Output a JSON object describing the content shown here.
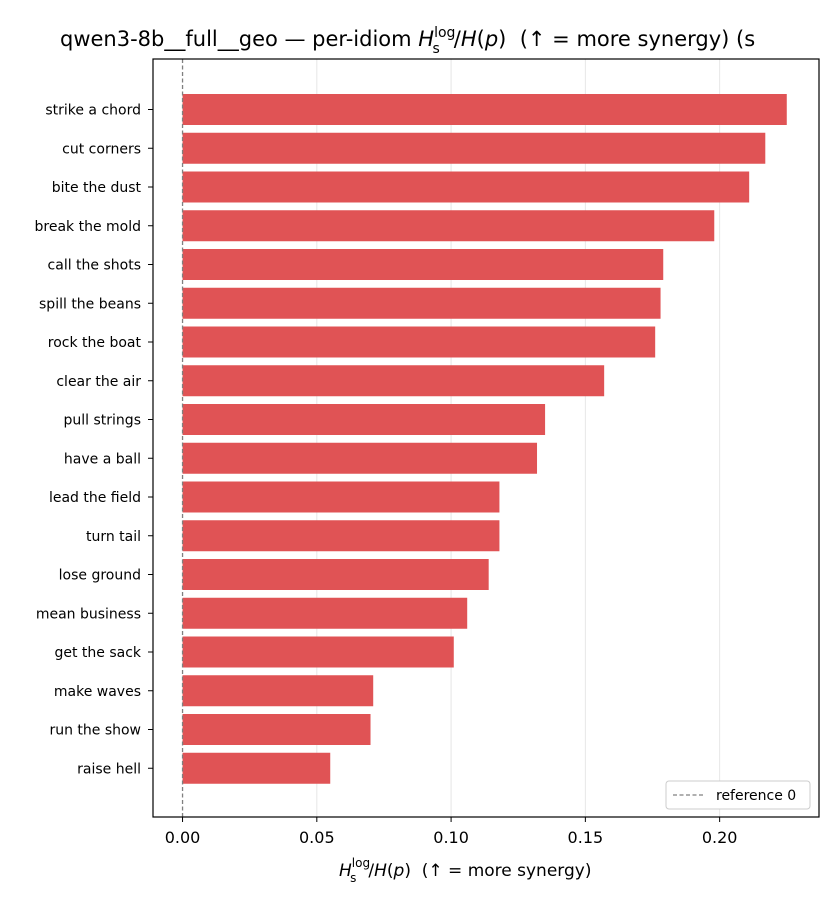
{
  "chart_data": {
    "type": "bar",
    "orientation": "horizontal",
    "title_prefix": "qwen3-8b__full__geo — per-idiom ",
    "title_suffix": "  (↑ = more synergy) (s",
    "xlabel_suffix": "  (↑ = more synergy)",
    "categories": [
      "strike a chord",
      "cut corners",
      "bite the dust",
      "break the mold",
      "call the shots",
      "spill the beans",
      "rock the boat",
      "clear the air",
      "pull strings",
      "have a ball",
      "lead the field",
      "turn tail",
      "lose ground",
      "mean business",
      "get the sack",
      "make waves",
      "run the show",
      "raise hell"
    ],
    "values": [
      0.225,
      0.217,
      0.211,
      0.198,
      0.179,
      0.178,
      0.176,
      0.157,
      0.135,
      0.132,
      0.118,
      0.118,
      0.114,
      0.106,
      0.101,
      0.071,
      0.07,
      0.055
    ],
    "xlim": [
      -0.011,
      0.237
    ],
    "xticks": [
      0.0,
      0.05,
      0.1,
      0.15,
      0.2
    ],
    "xtick_labels": [
      "0.00",
      "0.05",
      "0.10",
      "0.15",
      "0.20"
    ],
    "bar_color": "#e05355",
    "reference_line": {
      "value": 0,
      "label": "reference 0",
      "color": "#808080",
      "style": "dashed"
    },
    "grid": "vertical",
    "legend_position": "lower-right"
  }
}
